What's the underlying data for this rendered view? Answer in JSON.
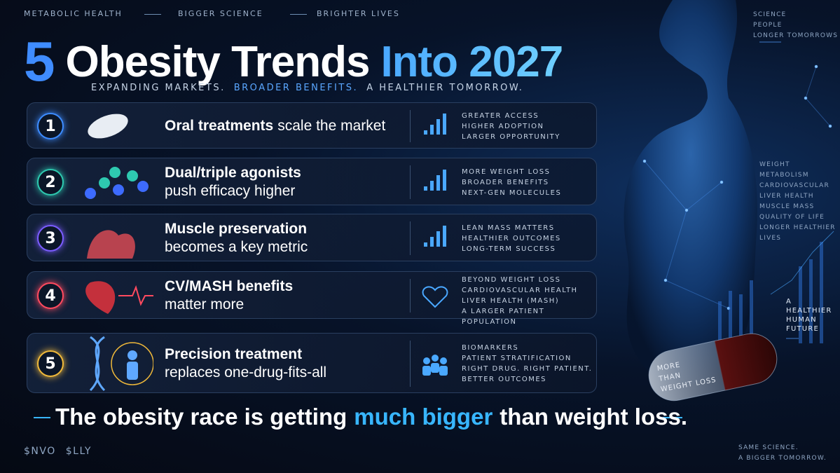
{
  "header": {
    "tagline": [
      "METABOLIC HEALTH",
      "BIGGER SCIENCE",
      "BRIGHTER LIVES"
    ],
    "title": {
      "number": "5",
      "main": "Obesity Trends",
      "accent": "Into 2027"
    },
    "subtitle": [
      "EXPANDING MARKETS.",
      "BROADER BENEFITS.",
      "A HEALTHIER TOMORROW."
    ]
  },
  "trends": [
    {
      "number": "1",
      "title": "Oral treatments",
      "text": "scale the market",
      "points": [
        "GREATER ACCESS",
        "HIGHER ADOPTION",
        "LARGER OPPORTUNITY"
      ]
    },
    {
      "number": "2",
      "title": "Dual/triple agonists",
      "text": "push efficacy higher",
      "points": [
        "MORE WEIGHT LOSS",
        "BROADER BENEFITS",
        "NEXT-GEN MOLECULES"
      ]
    },
    {
      "number": "3",
      "title": "Muscle preservation",
      "text": "becomes a key metric",
      "points": [
        "LEAN MASS MATTERS",
        "HEALTHIER OUTCOMES",
        "LONG-TERM SUCCESS"
      ]
    },
    {
      "number": "4",
      "title": "CV/MASH benefits",
      "text": "matter more",
      "points": [
        "BEYOND WEIGHT LOSS",
        "CARDIOVASCULAR HEALTH",
        "LIVER HEALTH (MASH)",
        "A LARGER PATIENT POPULATION"
      ]
    },
    {
      "number": "5",
      "title": "Precision treatment",
      "text": "replaces one-drug-fits-all",
      "points": [
        "BIOMARKERS",
        "PATIENT STRATIFICATION",
        "RIGHT DRUG. RIGHT PATIENT.",
        "BETTER OUTCOMES"
      ]
    }
  ],
  "footer": {
    "headline": {
      "before": "The obesity race is getting",
      "accent": "much bigger",
      "after": "than weight loss."
    },
    "tickers": [
      "$NVO",
      "$LLY"
    ],
    "closing": [
      "SAME SCIENCE.",
      "A BIGGER TOMORROW."
    ]
  },
  "side": {
    "top": [
      "SCIENCE",
      "PEOPLE",
      "LONGER TOMORROWS"
    ],
    "benefits": [
      "WEIGHT",
      "METABOLISM",
      "CARDIOVASCULAR",
      "LIVER HEALTH",
      "MUSCLE MASS",
      "QUALITY OF LIFE",
      "LONGER HEALTHIER LIVES"
    ],
    "future": [
      "A",
      "HEALTHIER",
      "HUMAN",
      "FUTURE"
    ],
    "pill": [
      "MORE",
      "THAN",
      "WEIGHT LOSS"
    ]
  }
}
